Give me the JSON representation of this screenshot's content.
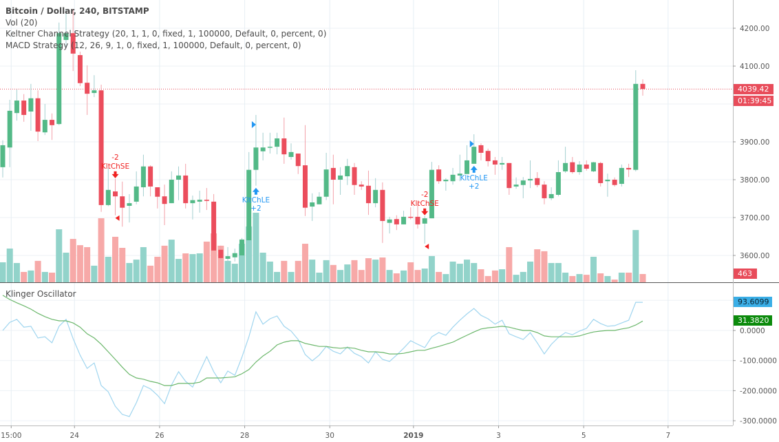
{
  "legend": {
    "title": "Bitcoin / Dollar, 240, BITSTAMP",
    "lines": [
      "Vol (20)",
      "Keltner Channel Strategy (20, 1, 1, 0, fixed, 1, 100000, Default, 0, percent, 0)",
      "MACD Strategy (12, 26, 9, 1, 0, fixed, 1, 100000, Default, 0, percent, 0)"
    ]
  },
  "oscillator_title": "Klinger Oscillator",
  "tags": {
    "last_price": "4039.42",
    "countdown": "01:39:45",
    "volume": "463",
    "klinger": "93.6099",
    "signal": "31.3820"
  },
  "colors": {
    "up": "#53b987",
    "down": "#eb4d5c",
    "vol_up": "#92d3ca",
    "vol_down": "#f7a9a8",
    "klinger": "#9fd5ef",
    "signal": "#6bb76b",
    "tag_price": "#e84c5a",
    "tag_klinger": "#3aaee6",
    "tag_signal": "#0b8a0b",
    "short_signal": "#f02020",
    "long_signal": "#2196f3"
  },
  "chart_data": [
    {
      "type": "candlestick",
      "title": "Bitcoin / Dollar, 240, BITSTAMP",
      "ylim": [
        3550,
        4290
      ],
      "y_ticks": [
        "4200.00",
        "4100.00",
        "3900.00",
        "3800.00",
        "3700.00",
        "3600.00"
      ],
      "x_ticks": [
        {
          "label": "15:00",
          "bar": 1.2,
          "bold": false
        },
        {
          "label": "24",
          "bar": 10.2,
          "bold": false
        },
        {
          "label": "26",
          "bar": 22.3,
          "bold": false
        },
        {
          "label": "28",
          "bar": 34.4,
          "bold": false
        },
        {
          "label": "30",
          "bar": 46.5,
          "bold": false
        },
        {
          "label": "2019",
          "bar": 58.4,
          "bold": true
        },
        {
          "label": "3",
          "bar": 70.5,
          "bold": false
        },
        {
          "label": "5",
          "bar": 82.6,
          "bold": false
        },
        {
          "label": "7",
          "bar": 94.6,
          "bold": false
        }
      ],
      "grid": true,
      "ohlc": [
        [
          3833,
          3904,
          3806,
          3891
        ],
        [
          3885,
          4011,
          3833,
          3982
        ],
        [
          3976,
          4038,
          3956,
          4009
        ],
        [
          4009,
          4026,
          3953,
          3971
        ],
        [
          3980,
          4053,
          3929,
          4015
        ],
        [
          4015,
          4036,
          3902,
          3927
        ],
        [
          3925,
          4000,
          3918,
          3958
        ],
        [
          3958,
          3975,
          3905,
          3944
        ],
        [
          3947,
          4215,
          3944,
          4187
        ],
        [
          4169,
          4251,
          4151,
          4187
        ],
        [
          4187,
          4251,
          4087,
          4133
        ],
        [
          4129,
          4138,
          4047,
          4055
        ],
        [
          4056,
          4102,
          3971,
          4027
        ],
        [
          4029,
          4076,
          4018,
          4036
        ],
        [
          4036,
          4051,
          3715,
          3733
        ],
        [
          3733,
          3831,
          3730,
          3773
        ],
        [
          3769,
          3802,
          3706,
          3756
        ],
        [
          3756,
          3795,
          3676,
          3726
        ],
        [
          3731,
          3762,
          3687,
          3738
        ],
        [
          3742,
          3822,
          3735,
          3782
        ],
        [
          3780,
          3866,
          3756,
          3835
        ],
        [
          3835,
          3838,
          3756,
          3782
        ],
        [
          3780,
          3780,
          3724,
          3755
        ],
        [
          3756,
          3787,
          3680,
          3736
        ],
        [
          3738,
          3822,
          3738,
          3800
        ],
        [
          3800,
          3835,
          3746,
          3811
        ],
        [
          3811,
          3842,
          3724,
          3738
        ],
        [
          3738,
          3758,
          3695,
          3746
        ],
        [
          3742,
          3771,
          3713,
          3747
        ],
        [
          3747,
          3778,
          3720,
          3744
        ],
        [
          3742,
          3762,
          3613,
          3613
        ],
        [
          3615,
          3626,
          3589,
          3593
        ],
        [
          3591,
          3622,
          3584,
          3598
        ],
        [
          3595,
          3618,
          3584,
          3606
        ],
        [
          3600,
          3646,
          3600,
          3642
        ],
        [
          3640,
          3873,
          3640,
          3826
        ],
        [
          3826,
          3971,
          3784,
          3885
        ],
        [
          3875,
          3924,
          3851,
          3885
        ],
        [
          3885,
          3924,
          3869,
          3887
        ],
        [
          3887,
          3924,
          3867,
          3909
        ],
        [
          3909,
          3964,
          3842,
          3867
        ],
        [
          3860,
          3896,
          3853,
          3873
        ],
        [
          3869,
          3869,
          3815,
          3836
        ],
        [
          3838,
          3944,
          3704,
          3726
        ],
        [
          3729,
          3764,
          3691,
          3740
        ],
        [
          3735,
          3767,
          3735,
          3755
        ],
        [
          3755,
          3871,
          3746,
          3827
        ],
        [
          3831,
          3866,
          3735,
          3800
        ],
        [
          3800,
          3833,
          3760,
          3811
        ],
        [
          3809,
          3855,
          3786,
          3836
        ],
        [
          3833,
          3844,
          3760,
          3786
        ],
        [
          3787,
          3796,
          3773,
          3782
        ],
        [
          3784,
          3824,
          3707,
          3738
        ],
        [
          3738,
          3804,
          3727,
          3773
        ],
        [
          3773,
          3793,
          3633,
          3691
        ],
        [
          3686,
          3702,
          3658,
          3695
        ],
        [
          3696,
          3706,
          3667,
          3682
        ],
        [
          3682,
          3718,
          3682,
          3702
        ],
        [
          3702,
          3727,
          3695,
          3700
        ],
        [
          3702,
          3738,
          3671,
          3682
        ],
        [
          3684,
          3704,
          3631,
          3698
        ],
        [
          3698,
          3847,
          3698,
          3826
        ],
        [
          3827,
          3838,
          3789,
          3796
        ],
        [
          3796,
          3804,
          3771,
          3800
        ],
        [
          3796,
          3831,
          3787,
          3813
        ],
        [
          3811,
          3866,
          3796,
          3816
        ],
        [
          3815,
          3891,
          3815,
          3851
        ],
        [
          3842,
          3920,
          3842,
          3887
        ],
        [
          3891,
          3896,
          3851,
          3871
        ],
        [
          3876,
          3882,
          3835,
          3849
        ],
        [
          3851,
          3860,
          3813,
          3840
        ],
        [
          3840,
          3860,
          3826,
          3844
        ],
        [
          3844,
          3844,
          3760,
          3778
        ],
        [
          3782,
          3806,
          3776,
          3787
        ],
        [
          3786,
          3807,
          3751,
          3798
        ],
        [
          3798,
          3851,
          3778,
          3802
        ],
        [
          3804,
          3820,
          3780,
          3786
        ],
        [
          3787,
          3796,
          3735,
          3751
        ],
        [
          3751,
          3780,
          3746,
          3762
        ],
        [
          3760,
          3851,
          3756,
          3820
        ],
        [
          3822,
          3887,
          3818,
          3844
        ],
        [
          3846,
          3860,
          3816,
          3820
        ],
        [
          3820,
          3849,
          3813,
          3840
        ],
        [
          3840,
          3851,
          3824,
          3829
        ],
        [
          3822,
          3847,
          3820,
          3846
        ],
        [
          3844,
          3847,
          3782,
          3791
        ],
        [
          3796,
          3816,
          3755,
          3800
        ],
        [
          3800,
          3806,
          3782,
          3786
        ],
        [
          3789,
          3840,
          3782,
          3831
        ],
        [
          3831,
          3842,
          3807,
          3827
        ],
        [
          3826,
          4089,
          3822,
          4053
        ],
        [
          4053,
          4065,
          4022,
          4039.42
        ]
      ],
      "volume": [
        1120,
        1890,
        1080,
        580,
        660,
        1200,
        580,
        540,
        2970,
        1660,
        2430,
        2080,
        1970,
        930,
        3590,
        1430,
        2550,
        1930,
        1080,
        1270,
        1970,
        930,
        1430,
        2050,
        2390,
        1310,
        1620,
        1580,
        1620,
        2280,
        2740,
        2050,
        1200,
        1040,
        2160,
        3130,
        3900,
        1660,
        1160,
        580,
        1200,
        580,
        1200,
        2160,
        1270,
        540,
        1240,
        970,
        690,
        1000,
        1240,
        690,
        1350,
        1270,
        1390,
        690,
        500,
        660,
        1120,
        690,
        770,
        1470,
        580,
        460,
        1160,
        1040,
        1270,
        1080,
        730,
        350,
        660,
        730,
        1970,
        420,
        580,
        1160,
        1850,
        1740,
        1080,
        1080,
        540,
        350,
        460,
        420,
        1430,
        500,
        350,
        150,
        540,
        540,
        2930,
        463
      ],
      "signals": [
        {
          "bar": 16,
          "side": "short",
          "qty": "-2",
          "label": "KltChSE"
        },
        {
          "bar": 36,
          "side": "long",
          "qty": "+2",
          "label": "KltChLE"
        },
        {
          "bar": 60,
          "side": "short",
          "qty": "-2",
          "label": "KltChSE"
        },
        {
          "bar": 67,
          "side": "long",
          "qty": "+2",
          "label": "KltChLE"
        }
      ],
      "last_price": 4039.42
    },
    {
      "type": "line",
      "title": "Klinger Oscillator",
      "ylim": [
        -300,
        125
      ],
      "y_ticks": [
        "0.0000",
        "-100.0000",
        "-200.0000",
        "-300.0000"
      ],
      "grid": true,
      "series": [
        {
          "values": [
            0,
            27,
            37,
            11,
            14,
            -25,
            -21,
            -41,
            14,
            37,
            -27,
            -82,
            -126,
            -108,
            -183,
            -204,
            -252,
            -279,
            -286,
            -240,
            -183,
            -194,
            -215,
            -243,
            -181,
            -137,
            -169,
            -188,
            -137,
            -87,
            -137,
            -174,
            -135,
            -149,
            -89,
            -21,
            62,
            21,
            39,
            48,
            14,
            -2,
            -30,
            -80,
            -101,
            -82,
            -53,
            -69,
            -78,
            -55,
            -76,
            -87,
            -108,
            -71,
            -96,
            -103,
            -82,
            -59,
            -34,
            -46,
            -57,
            -21,
            -7,
            -16,
            11,
            34,
            55,
            73,
            50,
            39,
            21,
            34,
            -11,
            -21,
            -30,
            -7,
            -41,
            -78,
            -46,
            -23,
            -7,
            -14,
            -2,
            7,
            37,
            23,
            14,
            16,
            25,
            34,
            93.6099,
            93.6099
          ]
        },
        {
          "values": [
            117,
            103,
            92,
            82,
            71,
            57,
            46,
            37,
            32,
            32,
            25,
            11,
            -11,
            -25,
            -46,
            -71,
            -96,
            -122,
            -146,
            -158,
            -162,
            -169,
            -174,
            -183,
            -183,
            -176,
            -176,
            -176,
            -172,
            -158,
            -158,
            -158,
            -156,
            -154,
            -144,
            -130,
            -105,
            -85,
            -69,
            -48,
            -39,
            -34,
            -34,
            -43,
            -48,
            -53,
            -53,
            -57,
            -59,
            -57,
            -59,
            -66,
            -71,
            -71,
            -73,
            -78,
            -78,
            -76,
            -71,
            -66,
            -66,
            -59,
            -53,
            -46,
            -39,
            -27,
            -16,
            -5,
            5,
            9,
            11,
            14,
            11,
            5,
            0,
            0,
            -7,
            -18,
            -21,
            -21,
            -21,
            -21,
            -18,
            -11,
            -5,
            -2,
            0,
            0,
            5,
            9,
            18,
            31.382
          ]
        }
      ]
    }
  ]
}
